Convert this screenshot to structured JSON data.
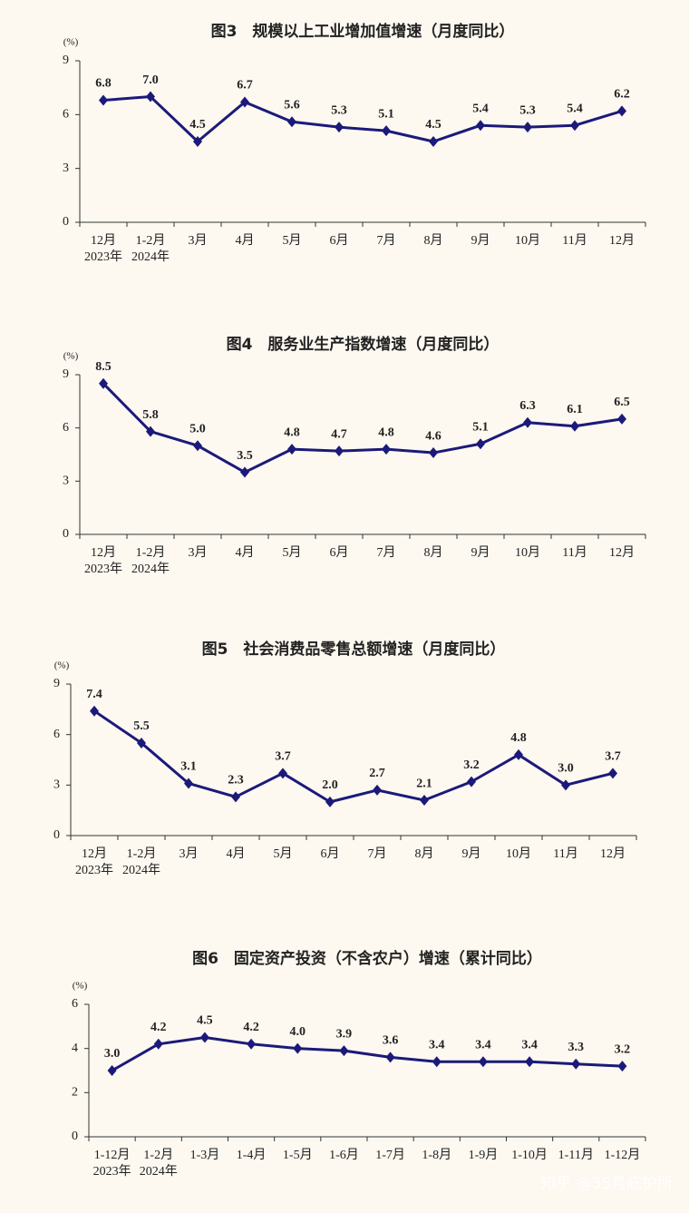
{
  "chart_data": [
    {
      "type": "line",
      "title": "图3　规模以上工业增加值增速（月度同比）",
      "y_unit": "(%)",
      "categories": [
        "12月",
        "1-2月",
        "3月",
        "4月",
        "5月",
        "6月",
        "7月",
        "8月",
        "9月",
        "10月",
        "11月",
        "12月"
      ],
      "category_years": [
        "2023年",
        "2024年"
      ],
      "values": [
        6.8,
        7.0,
        4.5,
        6.7,
        5.6,
        5.3,
        5.1,
        4.5,
        5.4,
        5.3,
        5.4,
        6.2
      ],
      "value_labels": [
        "6.8",
        "7.0",
        "4.5",
        "6.7",
        "5.6",
        "5.3",
        "5.1",
        "4.5",
        "5.4",
        "5.3",
        "5.4",
        "6.2"
      ],
      "color": "#1b1a7a",
      "ylim": [
        0,
        9
      ],
      "yticks": [
        0,
        3,
        6,
        9
      ]
    },
    {
      "type": "line",
      "title": "图4　服务业生产指数增速（月度同比）",
      "y_unit": "(%)",
      "categories": [
        "12月",
        "1-2月",
        "3月",
        "4月",
        "5月",
        "6月",
        "7月",
        "8月",
        "9月",
        "10月",
        "11月",
        "12月"
      ],
      "category_years": [
        "2023年",
        "2024年"
      ],
      "values": [
        8.5,
        5.8,
        5.0,
        3.5,
        4.8,
        4.7,
        4.8,
        4.6,
        5.1,
        6.3,
        6.1,
        6.5
      ],
      "value_labels": [
        "8.5",
        "5.8",
        "5.0",
        "3.5",
        "4.8",
        "4.7",
        "4.8",
        "4.6",
        "5.1",
        "6.3",
        "6.1",
        "6.5"
      ],
      "color": "#1b1a7a",
      "ylim": [
        0,
        9
      ],
      "yticks": [
        0,
        3,
        6,
        9
      ]
    },
    {
      "type": "line",
      "title": "图5　社会消费品零售总额增速（月度同比）",
      "y_unit": "(%)",
      "categories": [
        "12月",
        "1-2月",
        "3月",
        "4月",
        "5月",
        "6月",
        "7月",
        "8月",
        "9月",
        "10月",
        "11月",
        "12月"
      ],
      "category_years": [
        "2023年",
        "2024年"
      ],
      "values": [
        7.4,
        5.5,
        3.1,
        2.3,
        3.7,
        2.0,
        2.7,
        2.1,
        3.2,
        4.8,
        3.0,
        3.7
      ],
      "value_labels": [
        "7.4",
        "5.5",
        "3.1",
        "2.3",
        "3.7",
        "2.0",
        "2.7",
        "2.1",
        "3.2",
        "4.8",
        "3.0",
        "3.7"
      ],
      "color": "#1b1a7a",
      "ylim": [
        0,
        9
      ],
      "yticks": [
        0,
        3,
        6,
        9
      ]
    },
    {
      "type": "line",
      "title": "图6　固定资产投资（不含农户）增速（累计同比）",
      "y_unit": "(%)",
      "categories": [
        "1-12月",
        "1-2月",
        "1-3月",
        "1-4月",
        "1-5月",
        "1-6月",
        "1-7月",
        "1-8月",
        "1-9月",
        "1-10月",
        "1-11月",
        "1-12月"
      ],
      "category_years": [
        "2023年",
        "2024年"
      ],
      "values": [
        3.0,
        4.2,
        4.5,
        4.2,
        4.0,
        3.9,
        3.6,
        3.4,
        3.4,
        3.4,
        3.3,
        3.2
      ],
      "value_labels": [
        "3.0",
        "4.2",
        "4.5",
        "4.2",
        "4.0",
        "3.9",
        "3.6",
        "3.4",
        "3.4",
        "3.4",
        "3.3",
        "3.2"
      ],
      "color": "#1b1a7a",
      "ylim": [
        0,
        6
      ],
      "yticks": [
        0,
        2,
        4,
        6
      ]
    }
  ],
  "watermark": "知乎 @35号庇护所"
}
